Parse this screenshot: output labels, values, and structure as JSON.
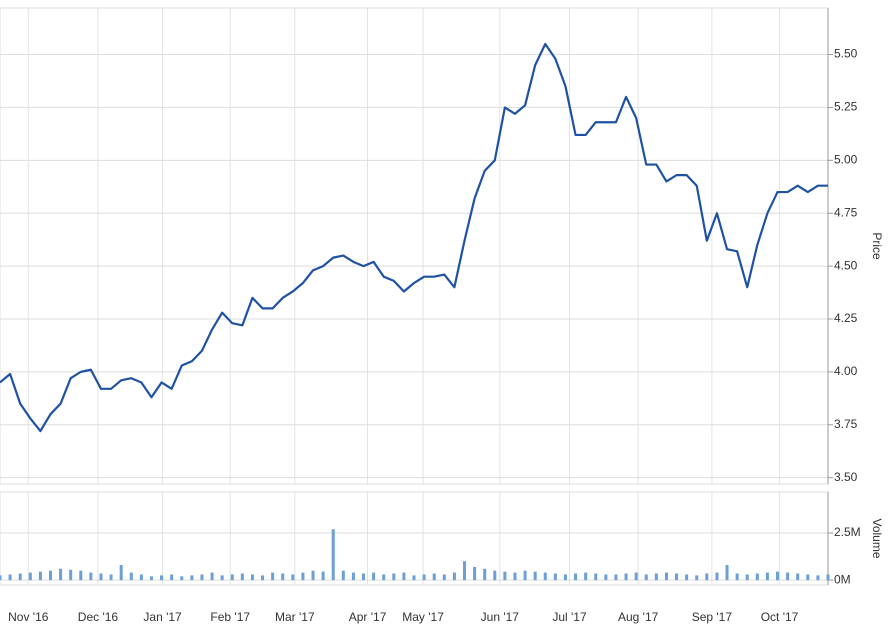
{
  "chart_data": [
    {
      "type": "line",
      "y_label": "Price",
      "color": "#1f52a3",
      "grid": true,
      "xlim": [
        0,
        82
      ],
      "ylim": [
        3.47,
        5.72
      ],
      "yticks": [
        {
          "value": 3.5,
          "label": "3.50"
        },
        3.75,
        {
          "value": 4,
          "label": "4.00"
        },
        4.25,
        {
          "value": 4.5,
          "label": "4.50"
        },
        4.75,
        {
          "value": 5,
          "label": "5.00"
        },
        5.25,
        {
          "value": 5.5,
          "label": "5.50"
        }
      ],
      "values": [
        3.95,
        3.99,
        3.85,
        3.78,
        3.72,
        3.8,
        3.85,
        3.97,
        4.0,
        4.01,
        3.92,
        3.92,
        3.96,
        3.97,
        3.95,
        3.88,
        3.95,
        3.92,
        4.03,
        4.05,
        4.1,
        4.2,
        4.28,
        4.23,
        4.22,
        4.35,
        4.3,
        4.3,
        4.35,
        4.38,
        4.42,
        4.48,
        4.5,
        4.54,
        4.55,
        4.52,
        4.5,
        4.52,
        4.45,
        4.43,
        4.38,
        4.42,
        4.45,
        4.45,
        4.46,
        4.4,
        4.62,
        4.82,
        4.95,
        5.0,
        5.25,
        5.22,
        5.26,
        5.45,
        5.55,
        5.48,
        5.35,
        5.12,
        5.12,
        5.18,
        5.18,
        5.18,
        5.3,
        5.2,
        4.98,
        4.98,
        4.9,
        4.93,
        4.93,
        4.88,
        4.62,
        4.75,
        4.58,
        4.57,
        4.4,
        4.6,
        4.75,
        4.85,
        4.85,
        4.88,
        4.85,
        4.88,
        4.88
      ]
    },
    {
      "type": "bar",
      "y_label": "Volume",
      "color": "#6a9fd8",
      "grid": true,
      "xlim": [
        0,
        82
      ],
      "ylim": [
        -260000,
        4680000
      ],
      "yticks": [
        {
          "value": 0,
          "label": "0M"
        },
        {
          "value": 2500000,
          "label": "2.5M"
        }
      ],
      "xticks": [
        {
          "value": 2.8,
          "label": "Nov '16"
        },
        {
          "value": 9.7,
          "label": "Dec '16"
        },
        {
          "value": 16.1,
          "label": "Jan '17"
        },
        {
          "value": 22.8,
          "label": "Feb '17"
        },
        {
          "value": 29.2,
          "label": "Mar '17"
        },
        {
          "value": 36.4,
          "label": "Apr '17"
        },
        {
          "value": 41.9,
          "label": "May '17"
        },
        {
          "value": 49.5,
          "label": "Jun '17"
        },
        {
          "value": 56.4,
          "label": "Jul '17"
        },
        {
          "value": 63.2,
          "label": "Aug '17"
        },
        {
          "value": 70.5,
          "label": "Sep '17"
        },
        {
          "value": 77.2,
          "label": "Oct '17"
        }
      ],
      "values": [
        250000,
        300000,
        350000,
        400000,
        450000,
        500000,
        600000,
        550000,
        500000,
        400000,
        350000,
        300000,
        800000,
        400000,
        300000,
        200000,
        250000,
        300000,
        200000,
        250000,
        300000,
        400000,
        250000,
        300000,
        350000,
        300000,
        250000,
        400000,
        350000,
        300000,
        400000,
        500000,
        450000,
        2700000,
        500000,
        400000,
        350000,
        400000,
        300000,
        350000,
        400000,
        250000,
        300000,
        350000,
        300000,
        400000,
        1000000,
        700000,
        600000,
        500000,
        450000,
        400000,
        500000,
        450000,
        400000,
        350000,
        300000,
        350000,
        400000,
        350000,
        300000,
        300000,
        350000,
        400000,
        300000,
        350000,
        400000,
        350000,
        300000,
        250000,
        350000,
        400000,
        800000,
        350000,
        300000,
        350000,
        400000,
        450000,
        400000,
        350000,
        300000,
        250000,
        300000
      ]
    }
  ]
}
